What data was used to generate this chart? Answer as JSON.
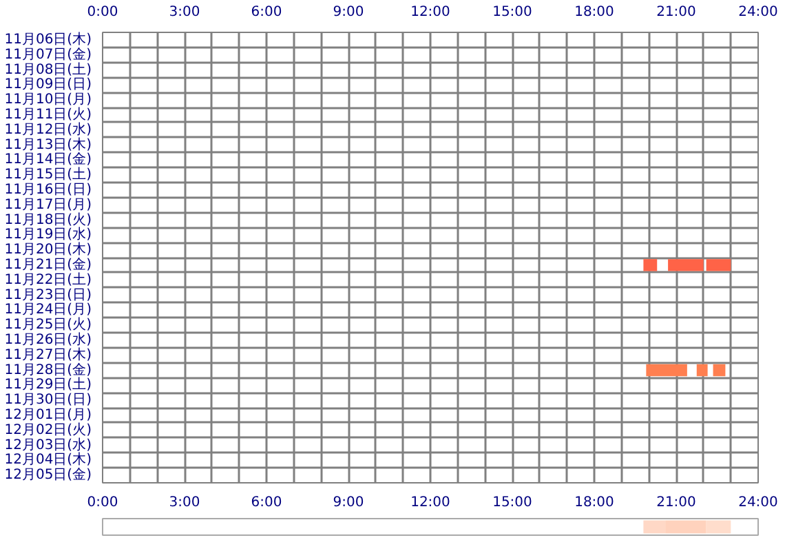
{
  "chart_data": [
    {
      "type": "bar",
      "orientation": "horizontal",
      "grid": true,
      "categories": [
        "11月06日(木)",
        "11月07日(金)",
        "11月08日(土)",
        "11月09日(日)",
        "11月10日(月)",
        "11月11日(火)",
        "11月12日(水)",
        "11月13日(木)",
        "11月14日(金)",
        "11月15日(土)",
        "11月16日(日)",
        "11月17日(月)",
        "11月18日(火)",
        "11月19日(水)",
        "11月20日(木)",
        "11月21日(金)",
        "11月22日(土)",
        "11月23日(日)",
        "11月24日(月)",
        "11月25日(火)",
        "11月26日(水)",
        "11月27日(木)",
        "11月28日(金)",
        "11月29日(土)",
        "11月30日(日)",
        "12月01日(月)",
        "12月02日(火)",
        "12月03日(水)",
        "12月04日(木)",
        "12月05日(金)"
      ],
      "xlim": [
        0,
        24
      ],
      "xticks": [
        {
          "value": 0,
          "label": "0:00"
        },
        {
          "value": 1,
          "label": null
        },
        {
          "value": 2,
          "label": null
        },
        {
          "value": 3,
          "label": "3:00"
        },
        {
          "value": 4,
          "label": null
        },
        {
          "value": 5,
          "label": null
        },
        {
          "value": 6,
          "label": "6:00"
        },
        {
          "value": 7,
          "label": null
        },
        {
          "value": 8,
          "label": null
        },
        {
          "value": 9,
          "label": "9:00"
        },
        {
          "value": 10,
          "label": null
        },
        {
          "value": 11,
          "label": null
        },
        {
          "value": 12,
          "label": "12:00"
        },
        {
          "value": 13,
          "label": null
        },
        {
          "value": 14,
          "label": null
        },
        {
          "value": 15,
          "label": "15:00"
        },
        {
          "value": 16,
          "label": null
        },
        {
          "value": 17,
          "label": null
        },
        {
          "value": 18,
          "label": "18:00"
        },
        {
          "value": 19,
          "label": null
        },
        {
          "value": 20,
          "label": null
        },
        {
          "value": 21,
          "label": "21:00"
        },
        {
          "value": 22,
          "label": null
        },
        {
          "value": 23,
          "label": null
        },
        {
          "value": 24,
          "label": "24:00"
        }
      ],
      "x2lim": [
        0,
        24
      ],
      "x2ticks": [
        {
          "value": 0,
          "label": "0:00"
        },
        {
          "value": 3,
          "label": "3:00"
        },
        {
          "value": 6,
          "label": "6:00"
        },
        {
          "value": 9,
          "label": "9:00"
        },
        {
          "value": 12,
          "label": "12:00"
        },
        {
          "value": 15,
          "label": "15:00"
        },
        {
          "value": 18,
          "label": "18:00"
        },
        {
          "value": 21,
          "label": "21:00"
        },
        {
          "value": 24,
          "label": "24:00"
        }
      ],
      "series": [
        {
          "colors": [
            null,
            null,
            null,
            null,
            null,
            null,
            null,
            null,
            null,
            null,
            null,
            null,
            null,
            null,
            null,
            "#ff6347",
            null,
            null,
            null,
            null,
            null,
            null,
            "#ff7f50",
            null,
            null,
            null,
            null,
            null,
            null,
            null
          ],
          "base": [
            null,
            null,
            null,
            null,
            null,
            null,
            null,
            null,
            null,
            null,
            null,
            null,
            null,
            null,
            null,
            19.8,
            null,
            null,
            null,
            null,
            null,
            null,
            19.9,
            null,
            null,
            null,
            null,
            null,
            null,
            null
          ],
          "values": [
            null,
            null,
            null,
            null,
            null,
            null,
            null,
            null,
            null,
            null,
            null,
            null,
            null,
            null,
            null,
            0.5,
            null,
            null,
            null,
            null,
            null,
            null,
            1.5,
            null,
            null,
            null,
            null,
            null,
            null,
            null
          ]
        },
        {
          "colors": [
            null,
            null,
            null,
            null,
            null,
            null,
            null,
            null,
            null,
            null,
            null,
            null,
            null,
            null,
            null,
            "#ff6347",
            null,
            null,
            null,
            null,
            null,
            null,
            "#ff7f50",
            null,
            null,
            null,
            null,
            null,
            null,
            null
          ],
          "base": [
            null,
            null,
            null,
            null,
            null,
            null,
            null,
            null,
            null,
            null,
            null,
            null,
            null,
            null,
            null,
            20.7,
            null,
            null,
            null,
            null,
            null,
            null,
            21.75,
            null,
            null,
            null,
            null,
            null,
            null,
            null
          ],
          "values": [
            null,
            null,
            null,
            null,
            null,
            null,
            null,
            null,
            null,
            null,
            null,
            null,
            null,
            null,
            null,
            1.3,
            null,
            null,
            null,
            null,
            null,
            null,
            0.4,
            null,
            null,
            null,
            null,
            null,
            null,
            null
          ]
        },
        {
          "colors": [
            null,
            null,
            null,
            null,
            null,
            null,
            null,
            null,
            null,
            null,
            null,
            null,
            null,
            null,
            null,
            "#ff6347",
            null,
            null,
            null,
            null,
            null,
            null,
            "#ff7f50",
            null,
            null,
            null,
            null,
            null,
            null,
            null
          ],
          "base": [
            null,
            null,
            null,
            null,
            null,
            null,
            null,
            null,
            null,
            null,
            null,
            null,
            null,
            null,
            null,
            22.1,
            null,
            null,
            null,
            null,
            null,
            null,
            22.35,
            null,
            null,
            null,
            null,
            null,
            null,
            null
          ],
          "values": [
            null,
            null,
            null,
            null,
            null,
            null,
            null,
            null,
            null,
            null,
            null,
            null,
            null,
            null,
            null,
            0.9,
            null,
            null,
            null,
            null,
            null,
            null,
            0.45,
            null,
            null,
            null,
            null,
            null,
            null,
            null
          ]
        }
      ]
    },
    {
      "type": "bar",
      "orientation": "horizontal",
      "grid": false,
      "categories": [
        null
      ],
      "xlim": [
        0,
        24
      ],
      "series": [
        {
          "color": "#ffd8c6",
          "base": [
            19.8
          ],
          "values": [
            0.8
          ]
        },
        {
          "color": "#ffd2bd",
          "base": [
            20.6
          ],
          "values": [
            1.5
          ]
        },
        {
          "color": "#ffddcc",
          "base": [
            22.1
          ],
          "values": [
            0.9
          ]
        }
      ]
    }
  ]
}
